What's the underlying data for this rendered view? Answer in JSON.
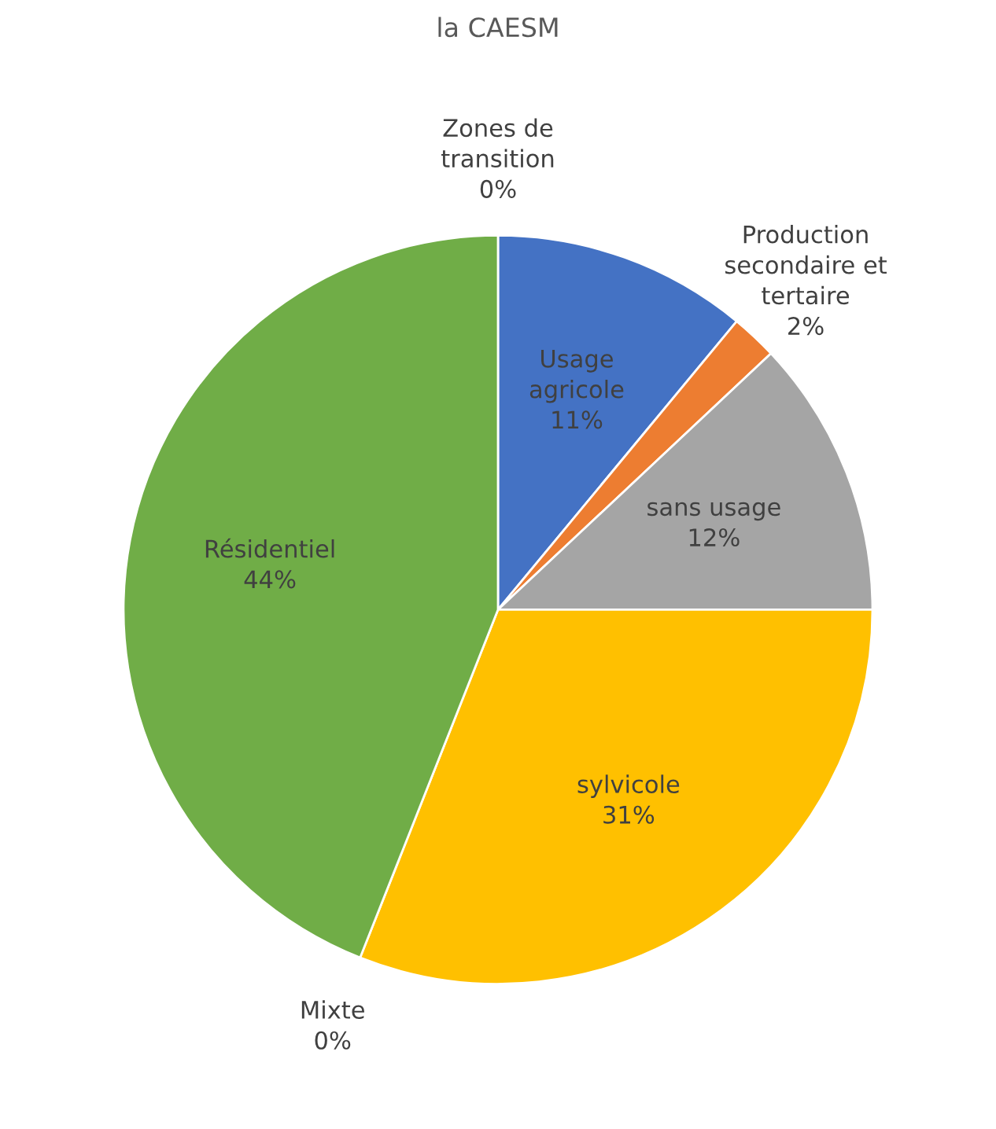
{
  "chart_data": {
    "type": "pie",
    "title": "la CAESM",
    "categories": [
      "Usage\nagricole",
      "Production\nsecondaire et\ntertaire",
      "sans usage",
      "sylvicole",
      "Mixte",
      "Résidentiel",
      "Zones de\ntransition"
    ],
    "values": [
      11,
      2,
      12,
      31,
      0,
      44,
      0
    ],
    "colors": [
      "#4472c4",
      "#ed7d31",
      "#a5a5a5",
      "#ffc000",
      "#5b9bd5",
      "#70ad47",
      "#264478"
    ],
    "value_labels": [
      "11%",
      "2%",
      "12%",
      "31%",
      "0%",
      "44%",
      "0%"
    ]
  }
}
